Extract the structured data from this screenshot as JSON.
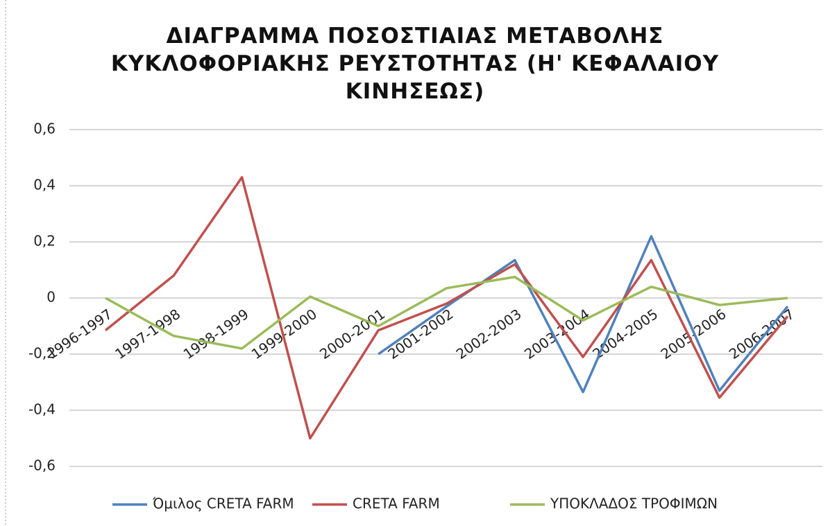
{
  "chart_data": {
    "type": "line",
    "title": "ΔΙΑΓΡΑΜΜΑ ΠΟΣΟΣΤΙΑΙΑΣ ΜΕΤΑΒΟΛΗΣ\nΚΥΚΛΟΦΟΡΙΑΚΗΣ ΡΕΥΣΤΟΤΗΤΑΣ (Η' ΚΕΦΑΛΑΙΟΥ\nΚΙΝΗΣΕΩΣ)",
    "categories": [
      "1996-1997",
      "1997-1998",
      "1998-1999",
      "1999-2000",
      "2000-2001",
      "2001-2002",
      "2002-2003",
      "2003-2004",
      "2004-2005",
      "2005-2006",
      "2006-2007"
    ],
    "series": [
      {
        "name": "Όμιλος CRETA FARM",
        "color": "#4f81bd",
        "values": [
          null,
          null,
          null,
          null,
          -0.2,
          -0.03,
          0.135,
          -0.335,
          0.22,
          -0.33,
          -0.03
        ]
      },
      {
        "name": "CRETA FARM",
        "color": "#c0504d",
        "values": [
          -0.115,
          0.08,
          0.43,
          -0.5,
          -0.115,
          -0.02,
          0.12,
          -0.21,
          0.135,
          -0.355,
          -0.065
        ]
      },
      {
        "name": "ΥΠΟΚΛΑΔΟΣ ΤΡΟΦΙΜΩΝ",
        "color": "#9bbb59",
        "values": [
          0,
          -0.135,
          -0.18,
          0.005,
          -0.1,
          0.035,
          0.075,
          -0.08,
          0.04,
          -0.025,
          0
        ]
      }
    ],
    "ylim": [
      -0.6,
      0.6
    ],
    "yticks": [
      {
        "value": -0.6,
        "label": "-0,6"
      },
      {
        "value": -0.4,
        "label": "-0,4"
      },
      {
        "value": -0.2,
        "label": "-0,2"
      },
      0,
      {
        "value": 0.2,
        "label": "0,2"
      },
      {
        "value": 0.4,
        "label": "0,4"
      },
      {
        "value": 0.6,
        "label": "0,6"
      }
    ],
    "grid": true,
    "legend": "bottom"
  }
}
